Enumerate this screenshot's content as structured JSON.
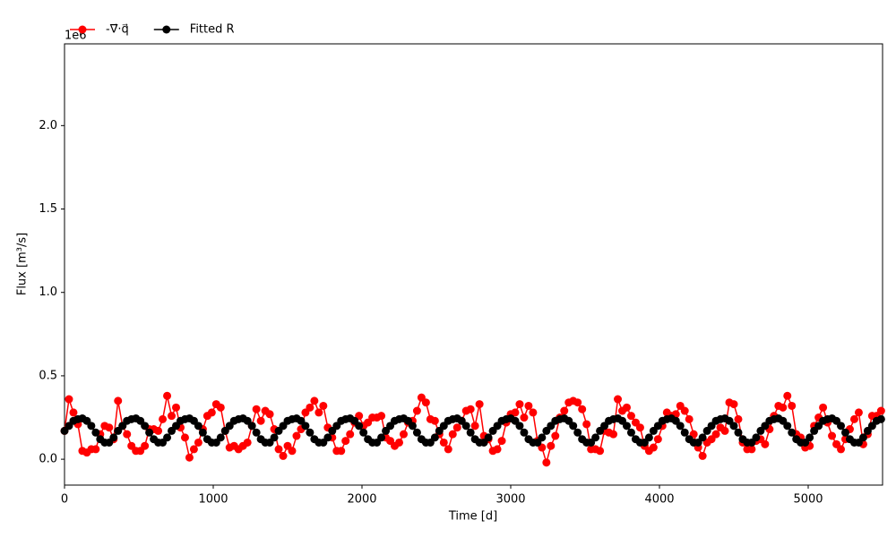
{
  "chart_data": {
    "type": "line",
    "xlabel": "Time [d]",
    "ylabel": "Flux [m³/s]",
    "offset_label": "1e6",
    "xlim": [
      0,
      5500
    ],
    "ylim": [
      -0.155,
      2.49
    ],
    "xticks": [
      0,
      1000,
      2000,
      3000,
      4000,
      5000
    ],
    "yticks": [
      {
        "value": 0,
        "label": "0.0"
      },
      0.5,
      {
        "value": 1,
        "label": "1.0"
      },
      1.5,
      {
        "value": 2,
        "label": "2.0"
      }
    ],
    "legend": "upper left",
    "x": [
      0,
      30,
      60,
      90,
      120,
      150,
      180,
      210,
      240,
      270,
      300,
      330,
      360,
      390,
      420,
      450,
      480,
      510,
      540,
      570,
      600,
      630,
      660,
      690,
      720,
      750,
      780,
      810,
      840,
      870,
      900,
      930,
      960,
      990,
      1020,
      1050,
      1080,
      1110,
      1140,
      1170,
      1200,
      1230,
      1260,
      1290,
      1320,
      1350,
      1380,
      1410,
      1440,
      1470,
      1500,
      1530,
      1560,
      1590,
      1620,
      1650,
      1680,
      1710,
      1740,
      1770,
      1800,
      1830,
      1860,
      1890,
      1920,
      1950,
      1980,
      2010,
      2040,
      2070,
      2100,
      2130,
      2160,
      2190,
      2220,
      2250,
      2280,
      2310,
      2340,
      2370,
      2400,
      2430,
      2460,
      2490,
      2520,
      2550,
      2580,
      2610,
      2640,
      2670,
      2700,
      2730,
      2760,
      2790,
      2820,
      2850,
      2880,
      2910,
      2940,
      2970,
      3000,
      3030,
      3060,
      3090,
      3120,
      3150,
      3180,
      3210,
      3240,
      3270,
      3300,
      3330,
      3360,
      3390,
      3420,
      3450,
      3480,
      3510,
      3540,
      3570,
      3600,
      3630,
      3660,
      3690,
      3720,
      3750,
      3780,
      3810,
      3840,
      3870,
      3900,
      3930,
      3960,
      3990,
      4020,
      4050,
      4080,
      4110,
      4140,
      4170,
      4200,
      4230,
      4260,
      4290,
      4320,
      4350,
      4380,
      4410,
      4440,
      4470,
      4500,
      4530,
      4560,
      4590,
      4620,
      4650,
      4680,
      4710,
      4740,
      4770,
      4800,
      4830,
      4860,
      4890,
      4920,
      4950,
      4980,
      5010,
      5040,
      5070,
      5100,
      5130,
      5160,
      5190,
      5220,
      5250,
      5280,
      5310,
      5340,
      5370,
      5400,
      5430,
      5460,
      5490
    ],
    "series": [
      {
        "name": "-∇⃗·q⃗",
        "color": "#ff0000",
        "values": [
          0.17,
          0.36,
          0.28,
          0.21,
          0.05,
          0.04,
          0.06,
          0.06,
          0.15,
          0.2,
          0.19,
          0.12,
          0.35,
          0.2,
          0.15,
          0.08,
          0.05,
          0.05,
          0.08,
          0.18,
          0.18,
          0.17,
          0.24,
          0.38,
          0.26,
          0.31,
          0.19,
          0.13,
          0.01,
          0.06,
          0.1,
          0.18,
          0.26,
          0.28,
          0.33,
          0.31,
          0.17,
          0.07,
          0.08,
          0.06,
          0.08,
          0.1,
          0.2,
          0.3,
          0.23,
          0.29,
          0.27,
          0.18,
          0.06,
          0.02,
          0.08,
          0.05,
          0.14,
          0.18,
          0.28,
          0.31,
          0.35,
          0.28,
          0.32,
          0.19,
          0.13,
          0.05,
          0.05,
          0.11,
          0.15,
          0.22,
          0.26,
          0.2,
          0.22,
          0.25,
          0.25,
          0.26,
          0.13,
          0.11,
          0.08,
          0.1,
          0.15,
          0.22,
          0.23,
          0.29,
          0.37,
          0.34,
          0.24,
          0.23,
          0.15,
          0.1,
          0.06,
          0.15,
          0.19,
          0.23,
          0.29,
          0.3,
          0.2,
          0.33,
          0.14,
          0.12,
          0.05,
          0.06,
          0.11,
          0.22,
          0.27,
          0.28,
          0.33,
          0.25,
          0.32,
          0.28,
          0.11,
          0.07,
          -0.02,
          0.08,
          0.14,
          0.25,
          0.29,
          0.34,
          0.35,
          0.34,
          0.3,
          0.21,
          0.06,
          0.06,
          0.05,
          0.17,
          0.16,
          0.15,
          0.36,
          0.29,
          0.31,
          0.26,
          0.22,
          0.19,
          0.08,
          0.05,
          0.07,
          0.12,
          0.2,
          0.28,
          0.26,
          0.27,
          0.32,
          0.29,
          0.24,
          0.15,
          0.07,
          0.02,
          0.1,
          0.12,
          0.15,
          0.19,
          0.17,
          0.34,
          0.33,
          0.24,
          0.1,
          0.06,
          0.06,
          0.11,
          0.12,
          0.09,
          0.18,
          0.26,
          0.32,
          0.31,
          0.38,
          0.32,
          0.15,
          0.13,
          0.07,
          0.08,
          0.2,
          0.25,
          0.31,
          0.22,
          0.14,
          0.09,
          0.06,
          0.12,
          0.18,
          0.24,
          0.28,
          0.09,
          0.15,
          0.26,
          0.26,
          0.29
        ]
      },
      {
        "name": "Fitted R",
        "color": "#000000",
        "values": [
          0.17,
          0.2,
          0.23,
          0.24,
          0.245,
          0.23,
          0.2,
          0.16,
          0.12,
          0.1,
          0.1,
          0.13,
          0.17,
          0.2,
          0.23,
          0.24,
          0.245,
          0.23,
          0.2,
          0.16,
          0.12,
          0.1,
          0.1,
          0.13,
          0.17,
          0.2,
          0.23,
          0.24,
          0.245,
          0.23,
          0.2,
          0.16,
          0.12,
          0.1,
          0.1,
          0.13,
          0.17,
          0.2,
          0.23,
          0.24,
          0.245,
          0.23,
          0.2,
          0.16,
          0.12,
          0.1,
          0.1,
          0.13,
          0.17,
          0.2,
          0.23,
          0.24,
          0.245,
          0.23,
          0.2,
          0.16,
          0.12,
          0.1,
          0.1,
          0.13,
          0.17,
          0.2,
          0.23,
          0.24,
          0.245,
          0.23,
          0.2,
          0.16,
          0.12,
          0.1,
          0.1,
          0.13,
          0.17,
          0.2,
          0.23,
          0.24,
          0.245,
          0.23,
          0.2,
          0.16,
          0.12,
          0.1,
          0.1,
          0.13,
          0.17,
          0.2,
          0.23,
          0.24,
          0.245,
          0.23,
          0.2,
          0.16,
          0.12,
          0.1,
          0.1,
          0.13,
          0.17,
          0.2,
          0.23,
          0.24,
          0.245,
          0.23,
          0.2,
          0.16,
          0.12,
          0.1,
          0.1,
          0.13,
          0.17,
          0.2,
          0.23,
          0.24,
          0.245,
          0.23,
          0.2,
          0.16,
          0.12,
          0.1,
          0.1,
          0.13,
          0.17,
          0.2,
          0.23,
          0.24,
          0.245,
          0.23,
          0.2,
          0.16,
          0.12,
          0.1,
          0.1,
          0.13,
          0.17,
          0.2,
          0.23,
          0.24,
          0.245,
          0.23,
          0.2,
          0.16,
          0.12,
          0.1,
          0.1,
          0.13,
          0.17,
          0.2,
          0.23,
          0.24,
          0.245,
          0.23,
          0.2,
          0.16,
          0.12,
          0.1,
          0.1,
          0.13,
          0.17,
          0.2,
          0.23,
          0.24,
          0.245,
          0.23,
          0.2,
          0.16,
          0.12,
          0.1,
          0.1,
          0.13,
          0.17,
          0.2,
          0.23,
          0.24,
          0.245,
          0.23,
          0.2,
          0.16,
          0.12,
          0.1,
          0.1,
          0.13,
          0.17,
          0.2,
          0.23,
          0.24
        ]
      }
    ]
  }
}
